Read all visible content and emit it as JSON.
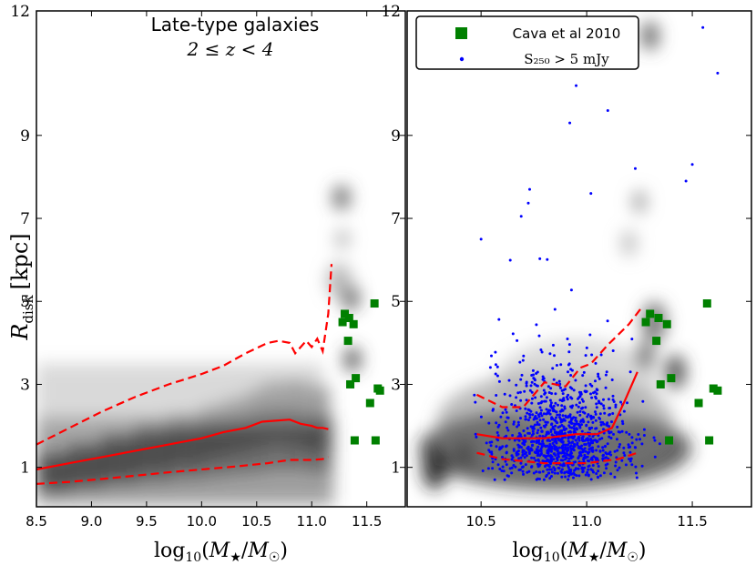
{
  "figure": {
    "ylabel_main": "R",
    "ylabel_sub": "disk",
    "ylabel_unit": "[kpc]"
  },
  "chart_data": [
    {
      "panel": "left",
      "type": "scatter",
      "title": "Late-type galaxies",
      "subtitle": "2 ≤ z < 4",
      "xlabel": "log10(M*/M☉)",
      "ylabel": "R_disk [kpc]",
      "xlim": [
        8.5,
        11.85
      ],
      "ylim": [
        0.05,
        12
      ],
      "xticks": [
        "8.5",
        "9.0",
        "9.5",
        "10.0",
        "10.5",
        "11.0",
        "11.5"
      ],
      "xtick_values": [
        8.5,
        9.0,
        9.5,
        10.0,
        10.5,
        11.0,
        11.5
      ],
      "yticks": [
        "1",
        "3",
        "5",
        "7",
        "9",
        "12"
      ],
      "ytick_values": [
        1,
        3,
        5,
        7,
        9,
        12
      ],
      "median_x": [
        8.5,
        8.8,
        9.1,
        9.4,
        9.7,
        10.0,
        10.2,
        10.4,
        10.55,
        10.8,
        10.9,
        11.0,
        11.05,
        11.1,
        11.15
      ],
      "median_y": [
        0.95,
        1.1,
        1.25,
        1.4,
        1.55,
        1.7,
        1.85,
        1.95,
        2.1,
        2.15,
        2.05,
        2.0,
        1.95,
        1.95,
        1.92
      ],
      "upper_x": [
        8.5,
        8.8,
        9.1,
        9.4,
        9.7,
        10.0,
        10.2,
        10.4,
        10.6,
        10.7,
        10.8,
        10.85,
        10.95,
        11.0,
        11.05,
        11.1,
        11.15,
        11.18
      ],
      "upper_y": [
        1.55,
        1.95,
        2.35,
        2.7,
        3.0,
        3.25,
        3.45,
        3.75,
        4.0,
        4.05,
        4.0,
        3.75,
        4.05,
        3.9,
        4.1,
        3.8,
        4.7,
        5.9
      ],
      "lower_x": [
        8.5,
        8.8,
        9.1,
        9.4,
        9.7,
        10.0,
        10.3,
        10.6,
        10.8,
        11.0,
        11.1,
        11.15
      ],
      "lower_y": [
        0.6,
        0.65,
        0.72,
        0.8,
        0.88,
        0.95,
        1.02,
        1.1,
        1.18,
        1.18,
        1.2,
        1.25
      ],
      "series": [
        {
          "name": "Cava et al 2010",
          "marker": "square",
          "color": "#008000",
          "x": [
            11.28,
            11.3,
            11.34,
            11.38,
            11.33,
            11.4,
            11.35,
            11.39,
            11.57,
            11.6,
            11.62,
            11.53,
            11.58
          ],
          "y": [
            4.5,
            4.7,
            4.6,
            4.45,
            4.05,
            3.15,
            3.0,
            1.65,
            4.95,
            2.9,
            2.85,
            2.55,
            1.65
          ]
        }
      ]
    },
    {
      "panel": "right",
      "type": "scatter",
      "xlabel": "log10(M*/M☉)",
      "xlim": [
        10.15,
        11.78
      ],
      "ylim": [
        0.05,
        12
      ],
      "xticks": [
        "10.5",
        "11.0",
        "11.5"
      ],
      "xtick_values": [
        10.5,
        11.0,
        11.5
      ],
      "yticks": [
        "1",
        "3",
        "5",
        "7",
        "9",
        "12"
      ],
      "ytick_values": [
        1,
        3,
        5,
        7,
        9,
        12
      ],
      "legend": {
        "position": "top-left",
        "entries": [
          {
            "label": "Cava et al 2010",
            "marker": "square",
            "color": "#008000"
          },
          {
            "label": "S₂₅₀ > 5 mJy",
            "marker": "dot",
            "color": "#0000ff"
          }
        ]
      },
      "median_x": [
        10.48,
        10.6,
        10.8,
        10.95,
        11.05,
        11.12,
        11.18,
        11.24
      ],
      "median_y": [
        1.8,
        1.7,
        1.7,
        1.8,
        1.8,
        1.95,
        2.6,
        3.3
      ],
      "upper_x": [
        10.48,
        10.6,
        10.7,
        10.8,
        10.9,
        10.97,
        11.02,
        11.1,
        11.2,
        11.26
      ],
      "upper_y": [
        2.75,
        2.45,
        2.45,
        3.05,
        2.95,
        3.4,
        3.5,
        3.95,
        4.45,
        4.85
      ],
      "lower_x": [
        10.48,
        10.6,
        10.8,
        11.0,
        11.15,
        11.24
      ],
      "lower_y": [
        1.35,
        1.2,
        1.1,
        1.1,
        1.2,
        1.35
      ],
      "series": [
        {
          "name": "Cava et al 2010",
          "marker": "square",
          "color": "#008000",
          "x": [
            11.28,
            11.3,
            11.34,
            11.38,
            11.33,
            11.4,
            11.35,
            11.39,
            11.57,
            11.6,
            11.62,
            11.53,
            11.58
          ],
          "y": [
            4.5,
            4.7,
            4.6,
            4.45,
            4.05,
            3.15,
            3.0,
            1.65,
            4.95,
            2.9,
            2.85,
            2.55,
            1.65
          ]
        },
        {
          "name": "S250 > 5 mJy",
          "marker": "dot",
          "color": "#0000ff",
          "n_points": 1100,
          "x_center": 10.88,
          "x_spread": 0.16,
          "y_center": 1.7,
          "y_spread": 0.75,
          "outliers_x": [
            11.55,
            11.62,
            10.95,
            10.5,
            11.23,
            11.47,
            10.73,
            10.92,
            11.1,
            11.5,
            11.02,
            10.69
          ],
          "outliers_y": [
            11.6,
            10.5,
            10.2,
            6.5,
            8.2,
            7.9,
            7.7,
            9.3,
            9.6,
            8.3,
            7.6,
            7.05
          ]
        }
      ]
    }
  ]
}
